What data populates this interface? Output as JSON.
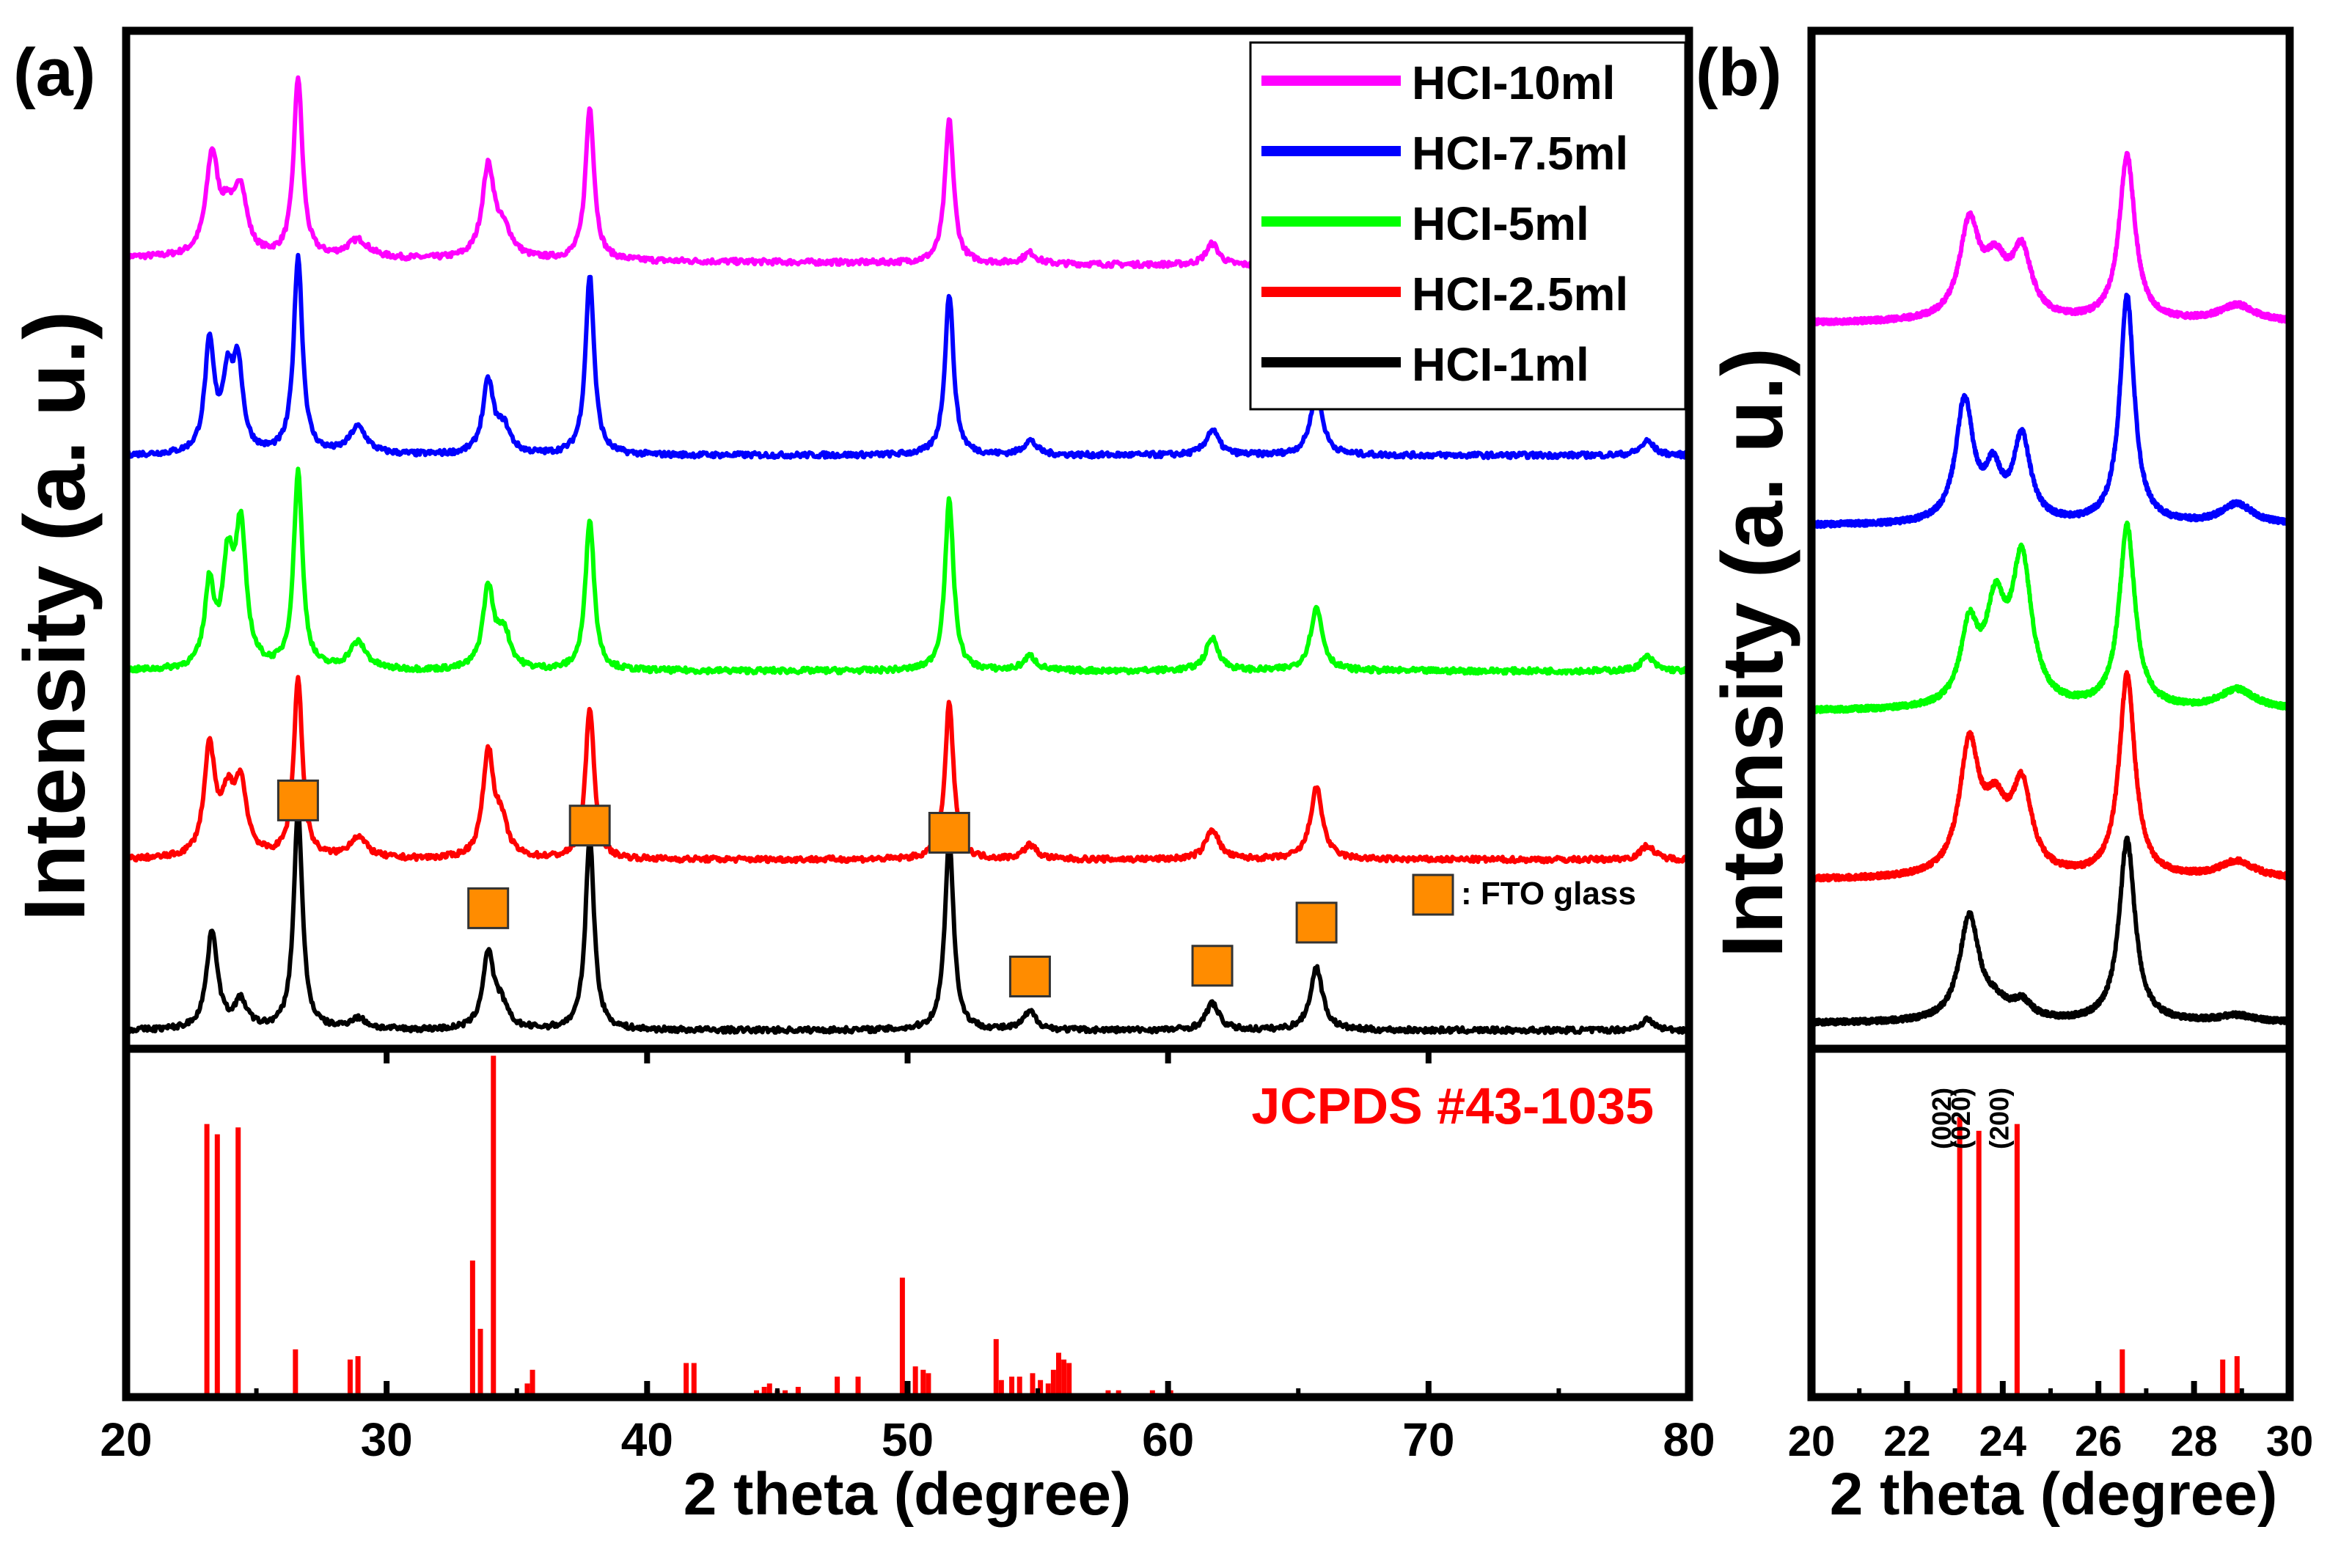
{
  "colors": {
    "HCI-10ml": "#ff00ff",
    "HCI-7.5ml": "#0000ff",
    "HCI-5ml": "#00ff00",
    "HCI-2.5ml": "#ff0000",
    "HCI-1ml": "#000000",
    "reference": "#ff0000",
    "fto_marker": "#ff8c00",
    "axis": "#000000"
  },
  "labels": {
    "panel_a": "(a)",
    "panel_b": "(b)",
    "fto_note": ": FTO glass",
    "jcpds": "JCPDS #43-1035",
    "miller": [
      "(002)",
      "(020)",
      "(200)"
    ]
  },
  "chart_data": [
    {
      "id": "panel-a",
      "type": "line",
      "title": "(a)",
      "xlabel": "2 theta (degree)",
      "ylabel": "Intensity (a. u.)",
      "xlim": [
        20,
        80
      ],
      "xticks": [
        20,
        30,
        40,
        50,
        60,
        70,
        80
      ],
      "legend": {
        "placement": "top-right",
        "entries": [
          "HCI-10ml",
          "HCI-7.5ml",
          "HCI-5ml",
          "HCI-2.5ml",
          "HCI-1ml"
        ]
      },
      "series": [
        {
          "name": "HCI-10ml",
          "offset": 4.3,
          "slope": -0.001,
          "peaks": [
            [
              23.3,
              0.55,
              0.28
            ],
            [
              23.9,
              0.2,
              0.3
            ],
            [
              24.4,
              0.35,
              0.28
            ],
            [
              26.6,
              1.0,
              0.2
            ],
            [
              28.9,
              0.1,
              0.5
            ],
            [
              33.9,
              0.5,
              0.28
            ],
            [
              34.5,
              0.14,
              0.4
            ],
            [
              37.8,
              0.85,
              0.2
            ],
            [
              51.6,
              0.8,
              0.2
            ],
            [
              54.7,
              0.06,
              0.3
            ],
            [
              61.7,
              0.12,
              0.3
            ]
          ]
        },
        {
          "name": "HCI-7.5ml",
          "offset": 3.2,
          "slope": 0.0,
          "peaks": [
            [
              23.2,
              0.6,
              0.22
            ],
            [
              23.9,
              0.4,
              0.25
            ],
            [
              24.3,
              0.45,
              0.22
            ],
            [
              26.6,
              1.1,
              0.2
            ],
            [
              28.9,
              0.15,
              0.4
            ],
            [
              33.9,
              0.4,
              0.25
            ],
            [
              34.5,
              0.14,
              0.3
            ],
            [
              37.8,
              1.0,
              0.2
            ],
            [
              51.6,
              0.9,
              0.2
            ],
            [
              54.7,
              0.08,
              0.3
            ],
            [
              61.7,
              0.14,
              0.3
            ],
            [
              65.7,
              0.35,
              0.28
            ],
            [
              78.4,
              0.08,
              0.3
            ]
          ]
        },
        {
          "name": "HCI-5ml",
          "offset": 2.0,
          "slope": 0.0,
          "peaks": [
            [
              23.2,
              0.45,
              0.22
            ],
            [
              23.9,
              0.55,
              0.25
            ],
            [
              24.4,
              0.75,
              0.25
            ],
            [
              26.6,
              1.1,
              0.2
            ],
            [
              28.9,
              0.15,
              0.4
            ],
            [
              33.9,
              0.45,
              0.25
            ],
            [
              34.5,
              0.2,
              0.3
            ],
            [
              37.8,
              0.85,
              0.2
            ],
            [
              51.6,
              0.95,
              0.2
            ],
            [
              54.7,
              0.08,
              0.3
            ],
            [
              61.7,
              0.18,
              0.3
            ],
            [
              65.7,
              0.35,
              0.28
            ],
            [
              78.4,
              0.08,
              0.3
            ]
          ]
        },
        {
          "name": "HCI-2.5ml",
          "offset": 0.95,
          "slope": 0.0,
          "peaks": [
            [
              23.2,
              0.6,
              0.25
            ],
            [
              23.9,
              0.3,
              0.3
            ],
            [
              24.4,
              0.38,
              0.28
            ],
            [
              26.6,
              1.0,
              0.2
            ],
            [
              28.9,
              0.12,
              0.4
            ],
            [
              33.9,
              0.58,
              0.25
            ],
            [
              34.4,
              0.18,
              0.3
            ],
            [
              37.8,
              0.85,
              0.2
            ],
            [
              51.6,
              0.87,
              0.2
            ],
            [
              54.7,
              0.08,
              0.3
            ],
            [
              61.7,
              0.17,
              0.3
            ],
            [
              65.7,
              0.4,
              0.28
            ],
            [
              78.4,
              0.08,
              0.3
            ]
          ]
        },
        {
          "name": "HCI-1ml",
          "offset": 0.0,
          "slope": 0.0,
          "peaks": [
            [
              23.3,
              0.55,
              0.25
            ],
            [
              24.4,
              0.15,
              0.3
            ],
            [
              26.6,
              1.22,
              0.2
            ],
            [
              28.9,
              0.06,
              0.4
            ],
            [
              33.9,
              0.42,
              0.25
            ],
            [
              34.4,
              0.12,
              0.3
            ],
            [
              37.8,
              1.08,
              0.2
            ],
            [
              51.6,
              1.08,
              0.2
            ],
            [
              54.7,
              0.1,
              0.3
            ],
            [
              61.7,
              0.15,
              0.3
            ],
            [
              65.7,
              0.35,
              0.28
            ],
            [
              78.4,
              0.06,
              0.3
            ]
          ]
        }
      ],
      "fto_peaks": [
        {
          "x": 26.6,
          "level": 1.28
        },
        {
          "x": 33.9,
          "level": 0.68
        },
        {
          "x": 37.8,
          "level": 1.14
        },
        {
          "x": 51.6,
          "level": 1.1
        },
        {
          "x": 54.7,
          "level": 0.3
        },
        {
          "x": 61.7,
          "level": 0.36
        },
        {
          "x": 65.7,
          "level": 0.6
        }
      ],
      "fto_legend": ": FTO glass"
    },
    {
      "id": "panel-a-ref",
      "type": "bar",
      "title": "JCPDS #43-1035",
      "xlim": [
        20,
        80
      ],
      "ylim": [
        0,
        1
      ],
      "x": [
        23.1,
        23.5,
        24.3,
        26.5,
        28.6,
        28.9,
        33.3,
        33.6,
        34.1,
        35.4,
        35.6,
        38.9,
        41.5,
        41.8,
        44.2,
        44.5,
        44.7,
        45.0,
        45.3,
        45.8,
        47.3,
        48.1,
        49.8,
        50.3,
        50.6,
        50.8,
        53.4,
        53.6,
        54.0,
        54.3,
        54.8,
        55.1,
        55.4,
        55.6,
        55.8,
        56.0,
        56.2,
        57.7,
        58.1,
        59.4,
        60.1
      ],
      "values": [
        0.8,
        0.77,
        0.79,
        0.14,
        0.11,
        0.12,
        0.4,
        0.2,
        1.0,
        0.04,
        0.08,
        0.01,
        0.1,
        0.1,
        0.02,
        0.03,
        0.04,
        0.02,
        0.02,
        0.03,
        0.06,
        0.06,
        0.35,
        0.09,
        0.08,
        0.07,
        0.17,
        0.05,
        0.06,
        0.06,
        0.07,
        0.05,
        0.04,
        0.08,
        0.13,
        0.11,
        0.1,
        0.02,
        0.02,
        0.02,
        0.02
      ]
    },
    {
      "id": "panel-b",
      "type": "line",
      "title": "(b)",
      "xlabel": "2 theta (degree)",
      "ylabel": "Intensity (a. u.)",
      "xlim": [
        20,
        30
      ],
      "xticks": [
        20,
        22,
        24,
        26,
        28,
        30
      ],
      "series": [
        {
          "name": "HCI-10ml",
          "offset": 4.15,
          "slope": 0.0,
          "peaks": [
            [
              23.3,
              0.55,
              0.25
            ],
            [
              23.85,
              0.3,
              0.3
            ],
            [
              24.4,
              0.38,
              0.25
            ],
            [
              26.6,
              0.98,
              0.2
            ],
            [
              28.9,
              0.1,
              0.45
            ]
          ]
        },
        {
          "name": "HCI-7.5ml",
          "offset": 2.95,
          "slope": 0.0,
          "peaks": [
            [
              23.2,
              0.72,
              0.22
            ],
            [
              23.8,
              0.28,
              0.2
            ],
            [
              24.4,
              0.5,
              0.22
            ],
            [
              26.6,
              1.35,
              0.18
            ],
            [
              28.9,
              0.12,
              0.4
            ]
          ]
        },
        {
          "name": "HCI-5ml",
          "offset": 1.85,
          "slope": 0.0,
          "peaks": [
            [
              23.3,
              0.45,
              0.22
            ],
            [
              23.85,
              0.55,
              0.25
            ],
            [
              24.4,
              0.85,
              0.25
            ],
            [
              26.6,
              1.08,
              0.2
            ],
            [
              28.9,
              0.12,
              0.45
            ]
          ]
        },
        {
          "name": "HCI-2.5ml",
          "offset": 0.85,
          "slope": 0.0,
          "peaks": [
            [
              23.3,
              0.75,
              0.25
            ],
            [
              23.85,
              0.35,
              0.3
            ],
            [
              24.4,
              0.5,
              0.25
            ],
            [
              26.6,
              1.2,
              0.2
            ],
            [
              28.9,
              0.1,
              0.45
            ]
          ]
        },
        {
          "name": "HCI-1ml",
          "offset": 0.0,
          "slope": 0.0,
          "peaks": [
            [
              23.3,
              0.62,
              0.25
            ],
            [
              23.85,
              0.08,
              0.3
            ],
            [
              24.4,
              0.1,
              0.25
            ],
            [
              26.6,
              1.08,
              0.2
            ],
            [
              28.9,
              0.04,
              0.45
            ]
          ]
        }
      ]
    },
    {
      "id": "panel-b-ref",
      "type": "bar",
      "xlim": [
        20,
        30
      ],
      "ylim": [
        0,
        1
      ],
      "x": [
        23.1,
        23.5,
        24.3,
        26.5,
        28.6,
        28.9
      ],
      "values": [
        0.82,
        0.78,
        0.8,
        0.14,
        0.11,
        0.12
      ],
      "miller_labels": [
        "(002)",
        "(020)",
        "(200)"
      ]
    }
  ]
}
